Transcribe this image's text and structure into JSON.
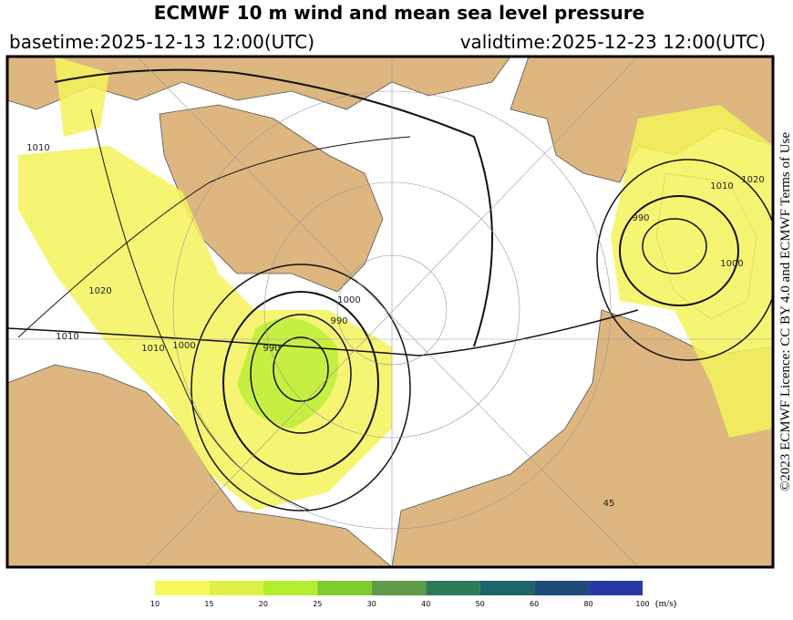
{
  "header": {
    "title": "ECMWF 10 m wind and mean sea level pressure",
    "basetime": "basetime:2025-12-13 12:00(UTC)",
    "validtime": "validtime:2025-12-23 12:00(UTC)"
  },
  "licence": "©2023 ECMWF Licence: CC BY 4.0 and ECMWF Terms of Use",
  "map": {
    "contour_labels": [
      1010,
      1020,
      1010,
      1000,
      990,
      1000,
      990,
      990,
      1010,
      1020,
      1000,
      1010,
      45
    ]
  },
  "colorbar": {
    "ticks": [
      10,
      15,
      20,
      25,
      30,
      40,
      50,
      60,
      80,
      100
    ],
    "colors": [
      "#f7f75e",
      "#dff045",
      "#b2ee2c",
      "#7fcc2e",
      "#5f9a46",
      "#2f7a58",
      "#1f6466",
      "#1e4a78",
      "#2a3aa4"
    ],
    "unit": "(m/s)"
  }
}
